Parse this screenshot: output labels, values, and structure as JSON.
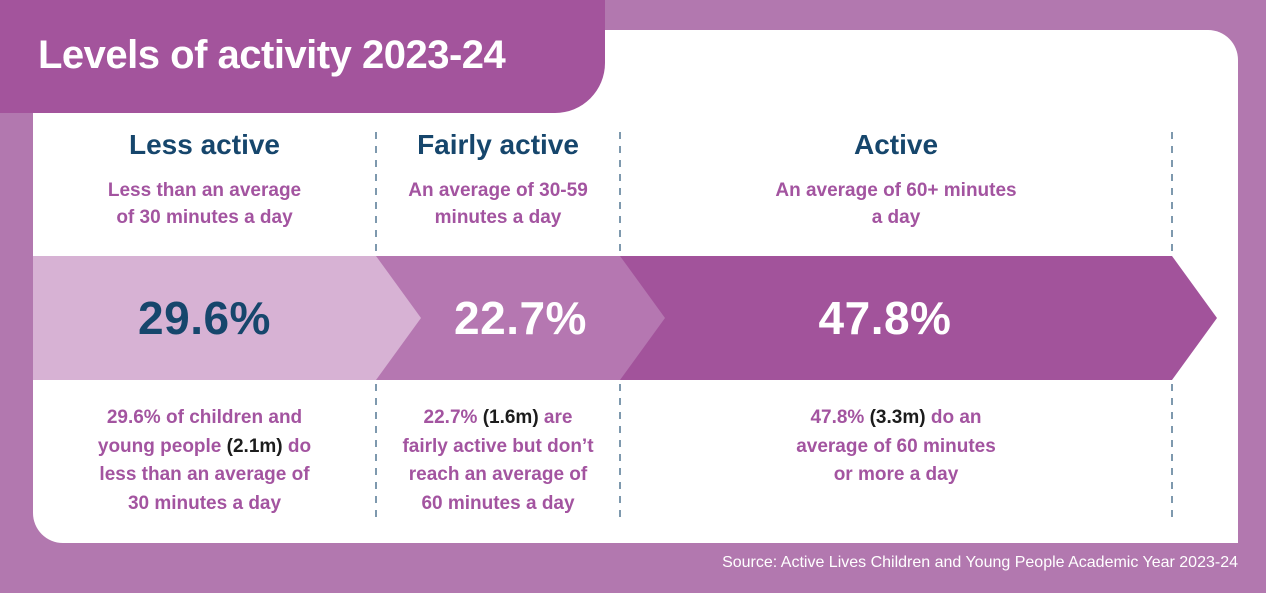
{
  "title": "Levels of activity 2023-24",
  "source": "Source: Active Lives Children and Young People Academic Year 2023-24",
  "columns": [
    {
      "header": "Less active",
      "subtitle": "Less than an average\nof 30 minutes a day",
      "percent": "29.6%",
      "desc": {
        "p1": "29.6% of children and\nyoung people ",
        "em": "(2.1m)",
        "p2": " do\nless than an average of\n30 minutes a day"
      }
    },
    {
      "header": "Fairly active",
      "subtitle": "An average of 30-59\nminutes a day",
      "percent": "22.7%",
      "desc": {
        "p1": "22.7% ",
        "em": "(1.6m)",
        "p2": " are\nfairly active but don’t\nreach an average of\n60 minutes a day"
      }
    },
    {
      "header": "Active",
      "subtitle": "An average of 60+ minutes\na day",
      "percent": "47.8%",
      "desc": {
        "p1": "47.8% ",
        "em": "(3.3m)",
        "p2": " do an\naverage of 60 minutes\nor more a day"
      }
    }
  ],
  "colors": {
    "background": "#b278af",
    "banner": "#a3549c",
    "card": "#ffffff",
    "segment_less": "#d7b2d4",
    "segment_fairly": "#b577b1",
    "segment_active": "#a2539b",
    "navy": "#16466c",
    "purple_text": "#a354a0",
    "dark_text": "#1c1c1c",
    "divider": "#7e99ae",
    "white_text": "#ffffff"
  },
  "chart_data": {
    "type": "bar",
    "orientation": "horizontal-proportional-band",
    "title": "Levels of activity 2023-24",
    "categories": [
      "Less active",
      "Fairly active",
      "Active"
    ],
    "values": [
      29.6,
      22.7,
      47.8
    ],
    "value_unit": "%",
    "populations": [
      "2.1m",
      "1.6m",
      "3.3m"
    ],
    "category_definitions": [
      "Less than an average of 30 minutes a day",
      "An average of 30-59 minutes a day",
      "An average of 60+ minutes a day"
    ],
    "xlim": [
      0,
      100
    ],
    "legend": "none",
    "source": "Source: Active Lives Children and Young People Academic Year 2023-24"
  }
}
